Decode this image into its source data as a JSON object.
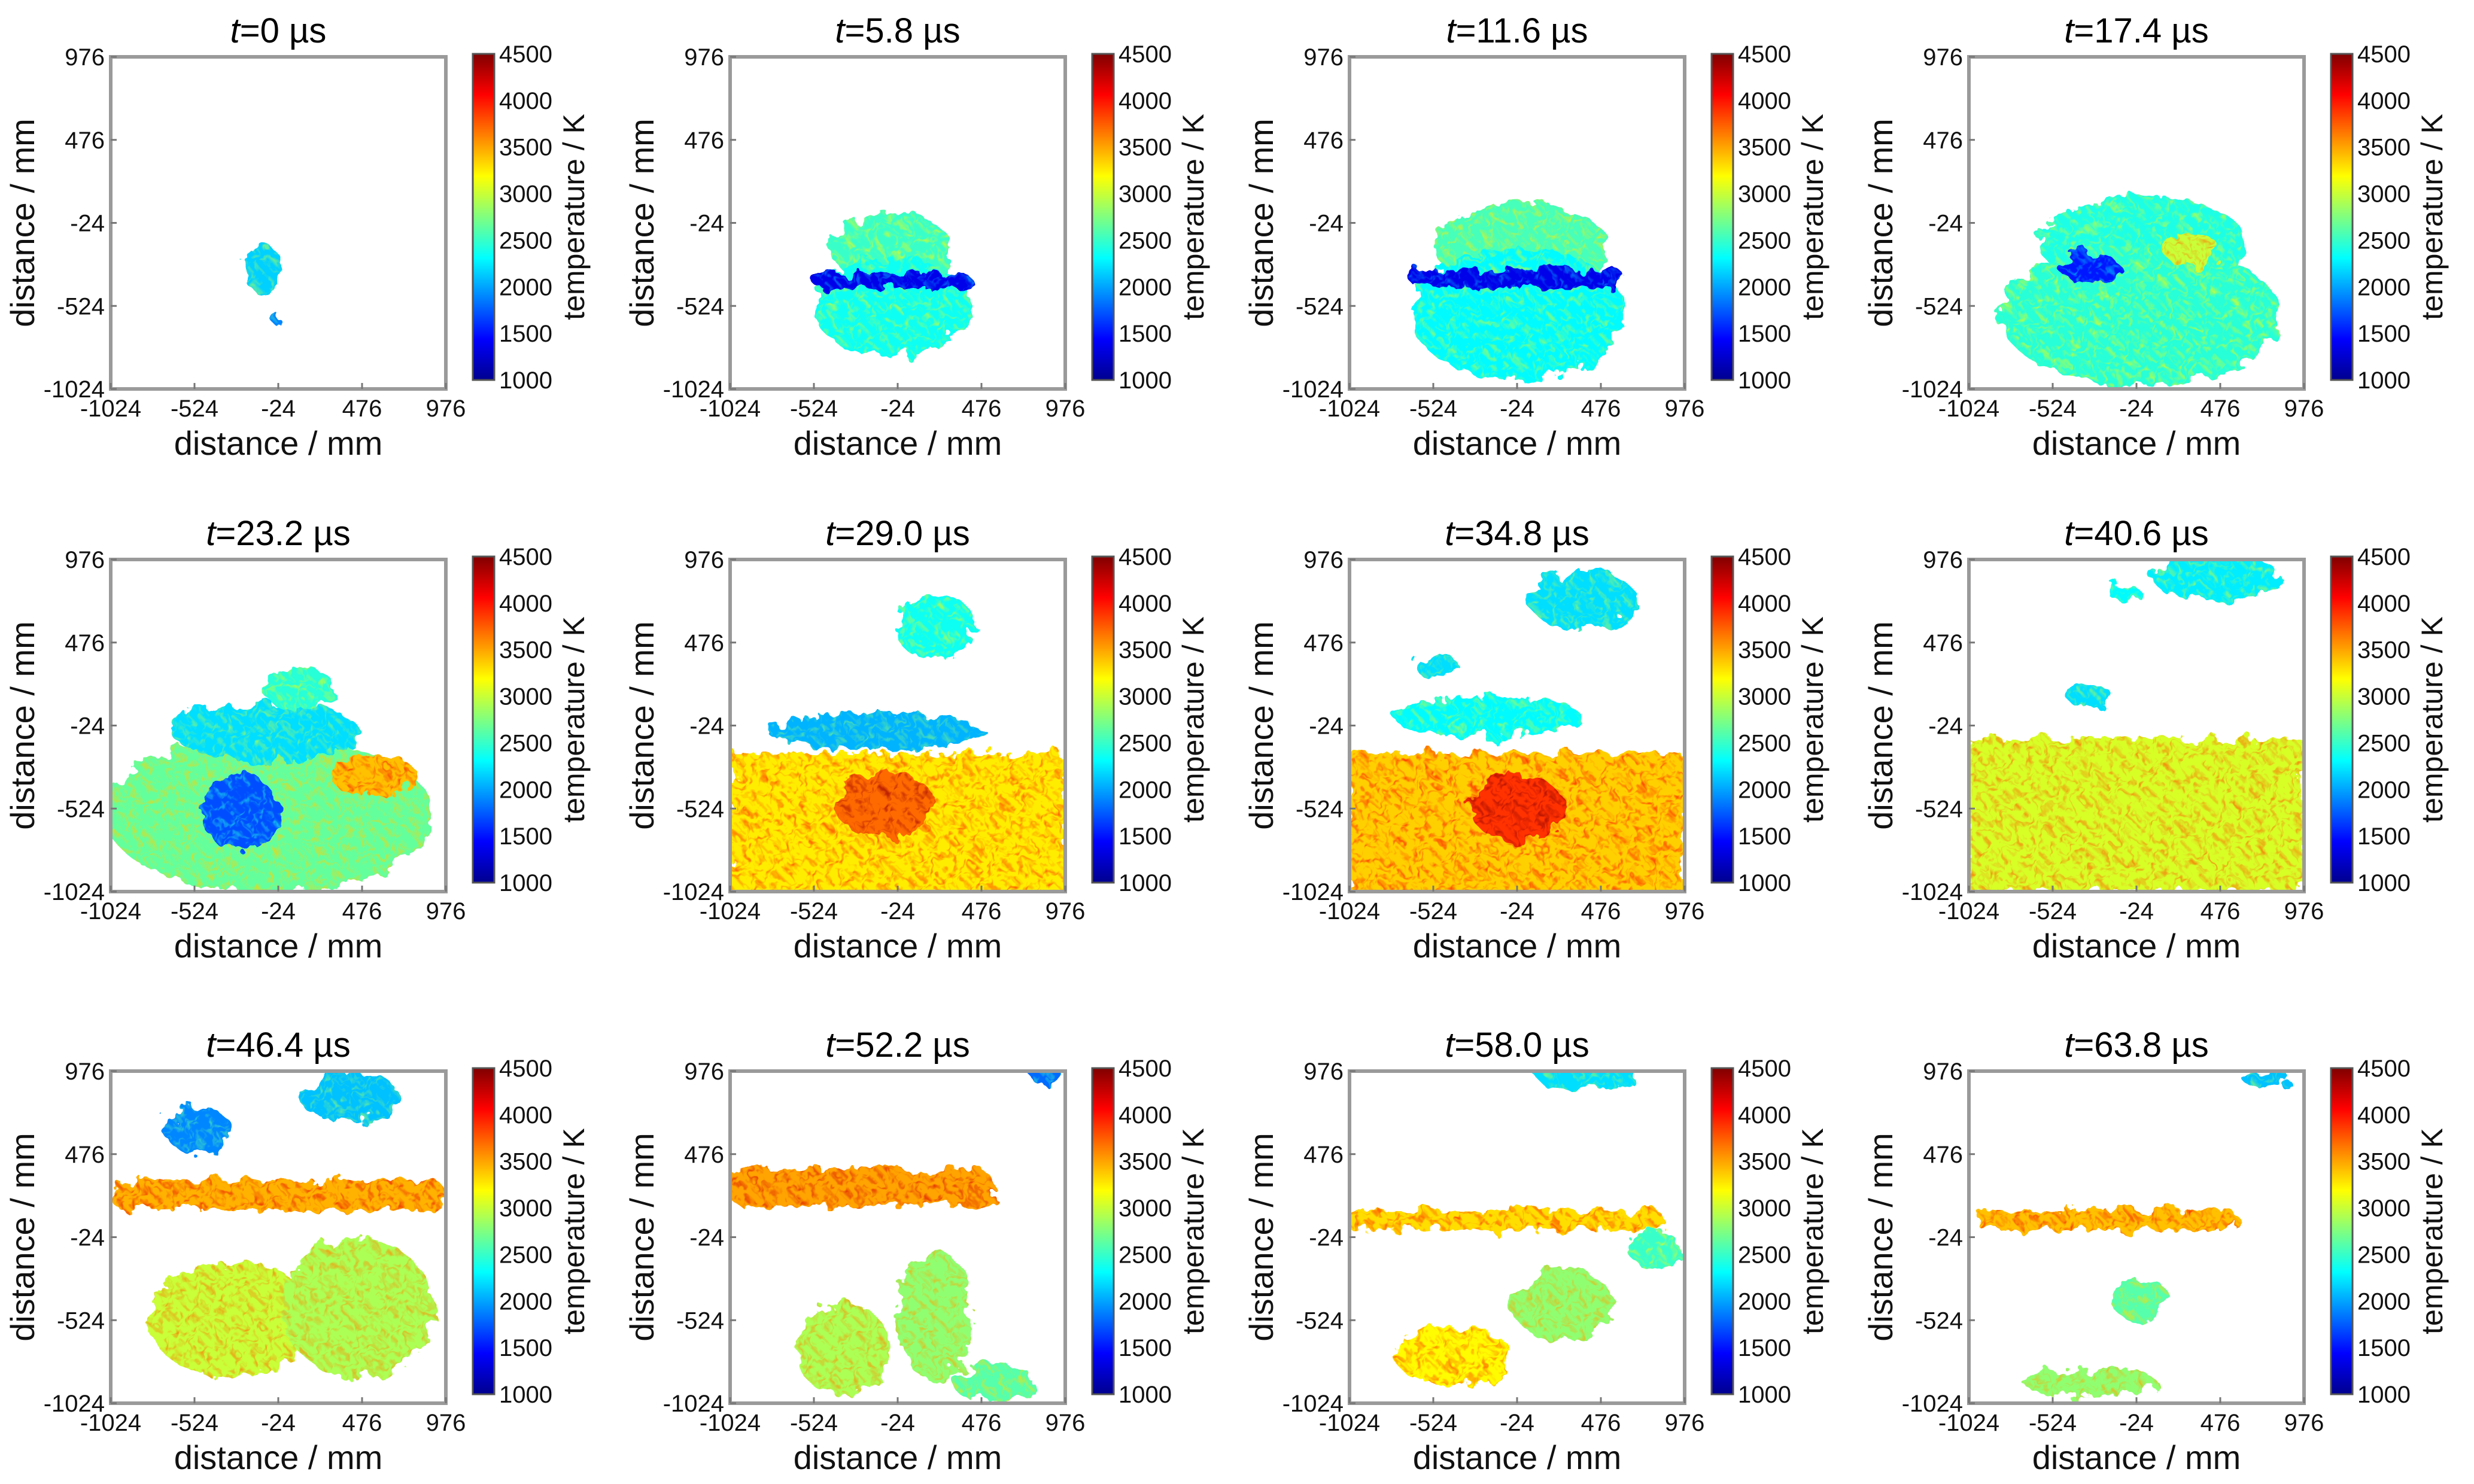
{
  "chart_data": {
    "type": "heatmap",
    "layout": {
      "rows": 3,
      "cols": 4
    },
    "xlabel": "distance / mm",
    "ylabel": "distance / mm",
    "xticks": [
      "-1024",
      "-524",
      "-24",
      "476",
      "976"
    ],
    "yticks": [
      "976",
      "476",
      "-24",
      "-524",
      "-1024"
    ],
    "xlim": [
      -1024,
      976
    ],
    "ylim": [
      -1024,
      976
    ],
    "colorbar": {
      "label": "temperature / K",
      "ticks": [
        "4500",
        "4000",
        "3500",
        "3000",
        "2500",
        "2000",
        "1500",
        "1000"
      ],
      "range": [
        1000,
        4500
      ],
      "colormap": [
        "#00008f",
        "#0000ff",
        "#0080ff",
        "#00ffff",
        "#80ff80",
        "#ffff00",
        "#ff8000",
        "#ff0000",
        "#800000"
      ]
    },
    "panels": [
      {
        "title_var": "t",
        "title_rest": "=0 µs",
        "time_us": 0,
        "regions": [
          {
            "shape": "blob",
            "cx": -120,
            "cy": -300,
            "rx": 110,
            "ry": 150,
            "t": 2150
          },
          {
            "shape": "blob",
            "cx": -30,
            "cy": -610,
            "rx": 30,
            "ry": 30,
            "t": 1900
          }
        ]
      },
      {
        "title_var": "t",
        "title_rest": "=5.8 µs",
        "time_us": 5.8,
        "regions": [
          {
            "shape": "blob",
            "cx": -60,
            "cy": -180,
            "rx": 360,
            "ry": 220,
            "t": 2500
          },
          {
            "shape": "blob",
            "cx": -60,
            "cy": -530,
            "rx": 470,
            "ry": 300,
            "t": 2350
          },
          {
            "shape": "band",
            "cx": -60,
            "cy": -370,
            "rx": 470,
            "ry": 45,
            "t": 1350
          }
        ]
      },
      {
        "title_var": "t",
        "title_rest": "=11.6 µs",
        "time_us": 11.6,
        "regions": [
          {
            "shape": "blob",
            "cx": 0,
            "cy": -160,
            "rx": 520,
            "ry": 260,
            "t": 2550
          },
          {
            "shape": "blob",
            "cx": -20,
            "cy": -570,
            "rx": 640,
            "ry": 400,
            "t": 2300
          },
          {
            "shape": "band",
            "cx": -20,
            "cy": -360,
            "rx": 640,
            "ry": 50,
            "t": 1350
          }
        ]
      },
      {
        "title_var": "t",
        "title_rest": "=17.4 µs",
        "time_us": 17.4,
        "regions": [
          {
            "shape": "blob",
            "cx": 20,
            "cy": -150,
            "rx": 620,
            "ry": 280,
            "t": 2400
          },
          {
            "shape": "blob",
            "cx": 0,
            "cy": -580,
            "rx": 840,
            "ry": 420,
            "t": 2450
          },
          {
            "shape": "blob",
            "cx": -300,
            "cy": -300,
            "rx": 180,
            "ry": 90,
            "t": 1500
          },
          {
            "shape": "blob",
            "cx": 300,
            "cy": -180,
            "rx": 160,
            "ry": 110,
            "t": 3000
          }
        ]
      },
      {
        "title_var": "t",
        "title_rest": "=23.2 µs",
        "time_us": 23.2,
        "regions": [
          {
            "shape": "blob",
            "cx": -80,
            "cy": -560,
            "rx": 980,
            "ry": 470,
            "t": 2650
          },
          {
            "shape": "blob",
            "cx": -100,
            "cy": -60,
            "rx": 560,
            "ry": 180,
            "t": 2200
          },
          {
            "shape": "blob",
            "cx": 100,
            "cy": 200,
            "rx": 220,
            "ry": 120,
            "t": 2450
          },
          {
            "shape": "blob",
            "cx": -250,
            "cy": -550,
            "rx": 230,
            "ry": 230,
            "t": 1700
          },
          {
            "shape": "blob",
            "cx": 550,
            "cy": -330,
            "rx": 260,
            "ry": 120,
            "t": 3400
          }
        ]
      },
      {
        "title_var": "t",
        "title_rest": "=29.0 µs",
        "time_us": 29.0,
        "regions": [
          {
            "shape": "rect",
            "cx": -24,
            "cy": -620,
            "rx": 1000,
            "ry": 430,
            "t": 3250
          },
          {
            "shape": "blob",
            "cx": -150,
            "cy": -60,
            "rx": 650,
            "ry": 110,
            "t": 2050
          },
          {
            "shape": "blob",
            "cx": 200,
            "cy": 570,
            "rx": 240,
            "ry": 200,
            "t": 2350
          },
          {
            "shape": "blob",
            "cx": -100,
            "cy": -500,
            "rx": 300,
            "ry": 200,
            "t": 3700
          }
        ]
      },
      {
        "title_var": "t",
        "title_rest": "=34.8 µs",
        "time_us": 34.8,
        "regions": [
          {
            "shape": "rect",
            "cx": -24,
            "cy": -620,
            "rx": 1000,
            "ry": 430,
            "t": 3350
          },
          {
            "shape": "blob",
            "cx": -200,
            "cy": 30,
            "rx": 560,
            "ry": 120,
            "t": 2300
          },
          {
            "shape": "blob",
            "cx": 370,
            "cy": 730,
            "rx": 320,
            "ry": 180,
            "t": 2200
          },
          {
            "shape": "blob",
            "cx": -500,
            "cy": 330,
            "rx": 130,
            "ry": 70,
            "t": 2200
          },
          {
            "shape": "blob",
            "cx": -24,
            "cy": -520,
            "rx": 280,
            "ry": 200,
            "t": 3900
          }
        ]
      },
      {
        "title_var": "t",
        "title_rest": "=40.6 µs",
        "time_us": 40.6,
        "regions": [
          {
            "shape": "rect",
            "cx": -24,
            "cy": -560,
            "rx": 1000,
            "ry": 460,
            "t": 3050
          },
          {
            "shape": "blob",
            "cx": 450,
            "cy": 870,
            "rx": 380,
            "ry": 140,
            "t": 2250
          },
          {
            "shape": "blob",
            "cx": -300,
            "cy": 150,
            "rx": 140,
            "ry": 60,
            "t": 2200
          },
          {
            "shape": "blob",
            "cx": -100,
            "cy": 780,
            "rx": 90,
            "ry": 60,
            "t": 2300
          }
        ]
      },
      {
        "title_var": "t",
        "title_rest": "=46.4 µs",
        "time_us": 46.4,
        "regions": [
          {
            "shape": "band",
            "cx": -24,
            "cy": 230,
            "rx": 1000,
            "ry": 90,
            "t": 3450
          },
          {
            "shape": "blob",
            "cx": -300,
            "cy": -520,
            "rx": 500,
            "ry": 350,
            "t": 3000
          },
          {
            "shape": "blob",
            "cx": 450,
            "cy": -450,
            "rx": 450,
            "ry": 420,
            "t": 2900
          },
          {
            "shape": "blob",
            "cx": 400,
            "cy": 820,
            "rx": 300,
            "ry": 150,
            "t": 2100
          },
          {
            "shape": "blob",
            "cx": -500,
            "cy": 620,
            "rx": 200,
            "ry": 140,
            "t": 1900
          }
        ]
      },
      {
        "title_var": "t",
        "title_rest": "=52.2 µs",
        "time_us": 52.2,
        "regions": [
          {
            "shape": "band",
            "cx": -250,
            "cy": 280,
            "rx": 800,
            "ry": 110,
            "t": 3500
          },
          {
            "shape": "blob",
            "cx": -350,
            "cy": -700,
            "rx": 280,
            "ry": 280,
            "t": 2900
          },
          {
            "shape": "blob",
            "cx": 200,
            "cy": -500,
            "rx": 220,
            "ry": 400,
            "t": 2800
          },
          {
            "shape": "blob",
            "cx": 550,
            "cy": -900,
            "rx": 250,
            "ry": 110,
            "t": 2600
          },
          {
            "shape": "blob",
            "cx": 850,
            "cy": 960,
            "rx": 90,
            "ry": 60,
            "t": 1800
          }
        ]
      },
      {
        "title_var": "t",
        "title_rest": "=58.0 µs",
        "time_us": 58.0,
        "regions": [
          {
            "shape": "band",
            "cx": -100,
            "cy": 80,
            "rx": 950,
            "ry": 60,
            "t": 3300
          },
          {
            "shape": "blob",
            "cx": -400,
            "cy": -740,
            "rx": 350,
            "ry": 180,
            "t": 3200
          },
          {
            "shape": "blob",
            "cx": 250,
            "cy": -430,
            "rx": 300,
            "ry": 220,
            "t": 2800
          },
          {
            "shape": "blob",
            "cx": 380,
            "cy": 960,
            "rx": 300,
            "ry": 90,
            "t": 2200
          },
          {
            "shape": "blob",
            "cx": 800,
            "cy": -100,
            "rx": 150,
            "ry": 120,
            "t": 2500
          }
        ]
      },
      {
        "title_var": "t",
        "title_rest": "=63.8 µs",
        "time_us": 63.8,
        "regions": [
          {
            "shape": "band",
            "cx": -200,
            "cy": 80,
            "rx": 780,
            "ry": 60,
            "t": 3400
          },
          {
            "shape": "blob",
            "cx": -300,
            "cy": -900,
            "rx": 400,
            "ry": 90,
            "t": 2800
          },
          {
            "shape": "blob",
            "cx": 0,
            "cy": -400,
            "rx": 180,
            "ry": 120,
            "t": 2600
          },
          {
            "shape": "blob",
            "cx": 750,
            "cy": 930,
            "rx": 140,
            "ry": 60,
            "t": 2100
          }
        ]
      }
    ]
  }
}
